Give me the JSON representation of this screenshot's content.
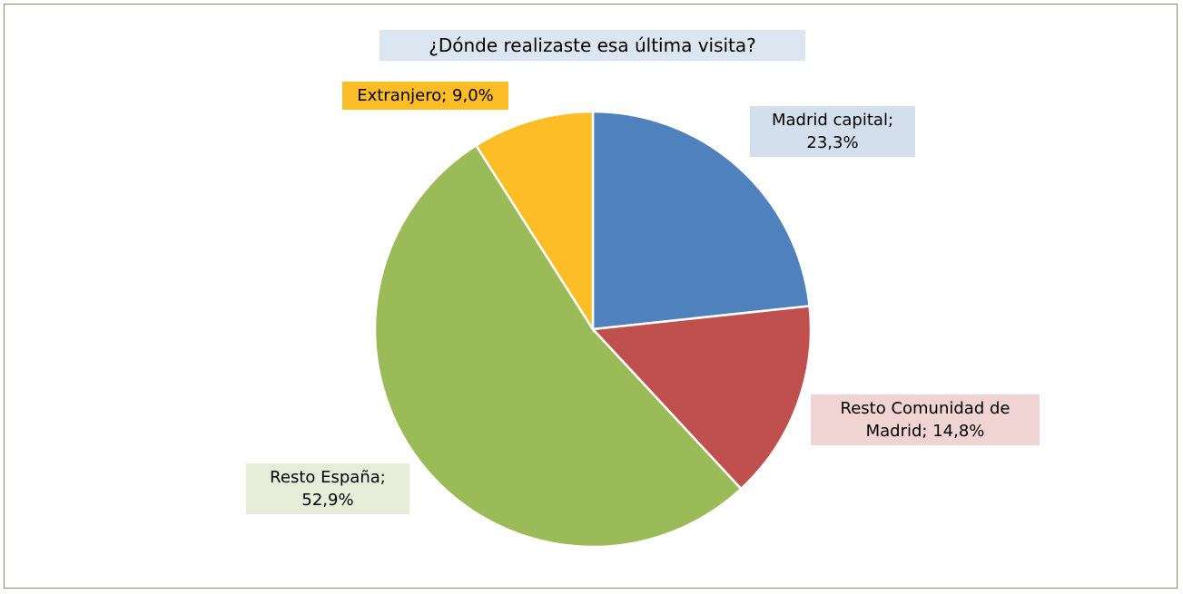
{
  "chart_data": {
    "type": "pie",
    "title": "¿Dónde realizaste esa última visita?",
    "categories": [
      "Madrid capital;",
      "Resto Comunidad de Madrid;",
      "Resto España;",
      "Extranjero;"
    ],
    "values": [
      23.3,
      14.8,
      52.9,
      9.0
    ],
    "value_labels": [
      "23,3%",
      "14,8%",
      "52,9%",
      "9,0%"
    ],
    "colors": [
      "#4f81bd",
      "#c0504d",
      "#9bbb59",
      "#fdbd27"
    ]
  }
}
